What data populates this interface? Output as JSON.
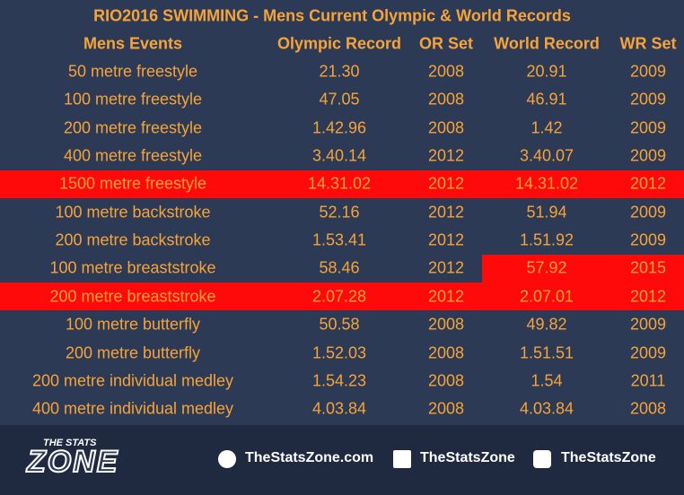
{
  "header": {
    "title": "RIO2016 SWIMMING - Mens Current Olympic & World Records"
  },
  "table": {
    "columns": [
      "Mens Events",
      "Olympic Record",
      "OR Set",
      "World Record",
      "WR Set"
    ],
    "rows": [
      [
        "50 metre freestyle",
        "21.30",
        2008,
        "20.91",
        2009
      ],
      [
        "100 metre freestyle",
        "47.05",
        2008,
        "46.91",
        2009
      ],
      [
        "200 metre freestyle",
        "1.42.96",
        2008,
        "1.42",
        2009
      ],
      [
        "400 metre freestyle",
        "3.40.14",
        2012,
        "3.40.07",
        2009
      ],
      [
        "1500 metre freestyle",
        "14.31.02",
        2012,
        "14.31.02",
        2012
      ],
      [
        "100 metre backstroke",
        "52.16",
        2012,
        "51.94",
        2009
      ],
      [
        "200 metre backstroke",
        "1.53.41",
        2012,
        "1.51.92",
        2009
      ],
      [
        "100 metre breaststroke",
        "58.46",
        2012,
        "57.92",
        2015
      ],
      [
        "200 metre breaststroke",
        "2.07.28",
        2012,
        "2.07.01",
        2012
      ],
      [
        "100 metre butterfly",
        "50.58",
        2008,
        "49.82",
        2009
      ],
      [
        "200 metre butterfly",
        "1.52.03",
        2008,
        "1.51.51",
        2009
      ],
      [
        "200 metre individual medley",
        "1.54.23",
        2008,
        "1.54",
        2011
      ],
      [
        "400 metre individual medley",
        "4.03.84",
        2008,
        "4.03.84",
        2008
      ]
    ]
  },
  "footer": {
    "logo_top": "THE STATS",
    "logo_main": "ZONE",
    "links": [
      "TheStatsZone.com",
      "TheStatsZone",
      "TheStatsZone"
    ]
  }
}
